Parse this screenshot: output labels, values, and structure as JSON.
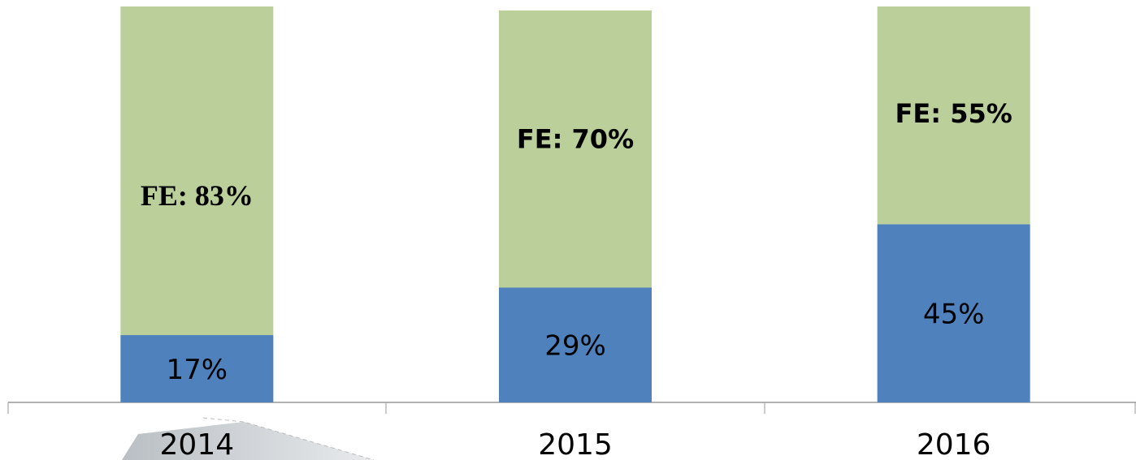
{
  "chart_data": {
    "type": "stacked_bar",
    "categories": [
      "2014",
      "2015",
      "2016"
    ],
    "series": [
      {
        "color": "#4f81bd",
        "values": [
          17,
          29,
          45
        ],
        "value_labels": [
          "17%",
          "29%",
          "45%"
        ]
      },
      {
        "color": "#bbcf9a",
        "values": [
          83,
          70,
          55
        ],
        "value_labels": [
          "FE: 83%",
          "FE: 70%",
          "FE: 55%"
        ]
      }
    ],
    "ylim": [
      0,
      100
    ]
  }
}
